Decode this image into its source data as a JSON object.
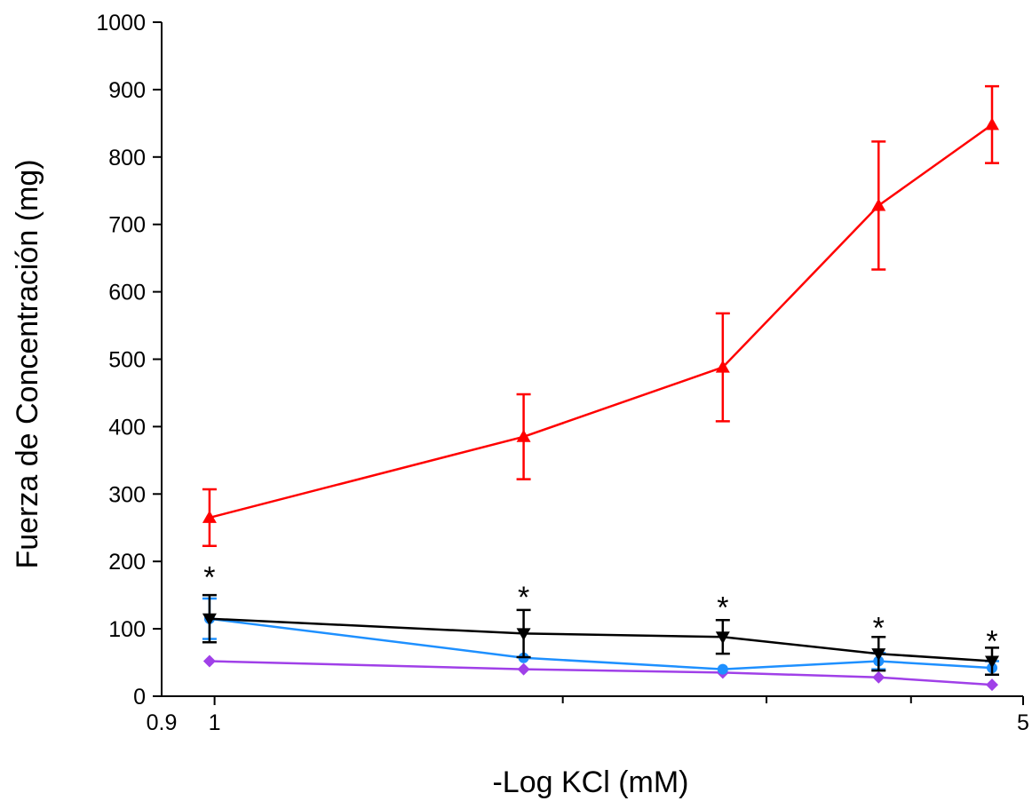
{
  "chart_data": {
    "type": "line",
    "title": "",
    "xlabel": "-Log KCl  (mM)",
    "ylabel": "Fuerza de Concentración (mg)",
    "x_scale": "log",
    "xlim": [
      0.9,
      5
    ],
    "ylim": [
      0,
      1000
    ],
    "x_tick_labels": [
      {
        "value": 0.9,
        "label": "0.9"
      },
      {
        "value": 1,
        "label": "1"
      },
      {
        "value": 5,
        "label": "5"
      }
    ],
    "x_minor_ticks": [
      2,
      3,
      4
    ],
    "y_ticks": [
      0,
      100,
      200,
      300,
      400,
      500,
      600,
      700,
      800,
      900,
      1000
    ],
    "grid": false,
    "legend": "none",
    "series": [
      {
        "color": "#ff0000",
        "marker": "triangle-up",
        "x": [
          0.99,
          1.85,
          2.75,
          3.75,
          4.7
        ],
        "y": [
          265,
          385,
          488,
          728,
          848
        ],
        "error": [
          42,
          63,
          80,
          95,
          57
        ]
      },
      {
        "color": "#000000",
        "marker": "triangle-down",
        "x": [
          0.99,
          1.85,
          2.75,
          3.75,
          4.7
        ],
        "y": [
          115,
          93,
          88,
          63,
          52
        ],
        "error": [
          35,
          35,
          25,
          25,
          20
        ]
      },
      {
        "color": "#1e90ff",
        "marker": "circle",
        "x": [
          0.99,
          1.85,
          2.75,
          3.75,
          4.7
        ],
        "y": [
          115,
          57,
          40,
          52,
          42
        ],
        "error": [
          30,
          0,
          0,
          12,
          10
        ]
      },
      {
        "color": "#a040e8",
        "marker": "diamond",
        "x": [
          0.99,
          1.85,
          2.75,
          3.75,
          4.7
        ],
        "y": [
          52,
          40,
          35,
          28,
          17
        ],
        "error": [
          0,
          0,
          0,
          0,
          0
        ]
      }
    ],
    "annotations": [
      {
        "text": "*",
        "x": 0.99,
        "y": 180
      },
      {
        "text": "*",
        "x": 1.85,
        "y": 150
      },
      {
        "text": "*",
        "x": 2.75,
        "y": 135
      },
      {
        "text": "*",
        "x": 3.75,
        "y": 105
      },
      {
        "text": "*",
        "x": 4.7,
        "y": 85
      }
    ]
  }
}
